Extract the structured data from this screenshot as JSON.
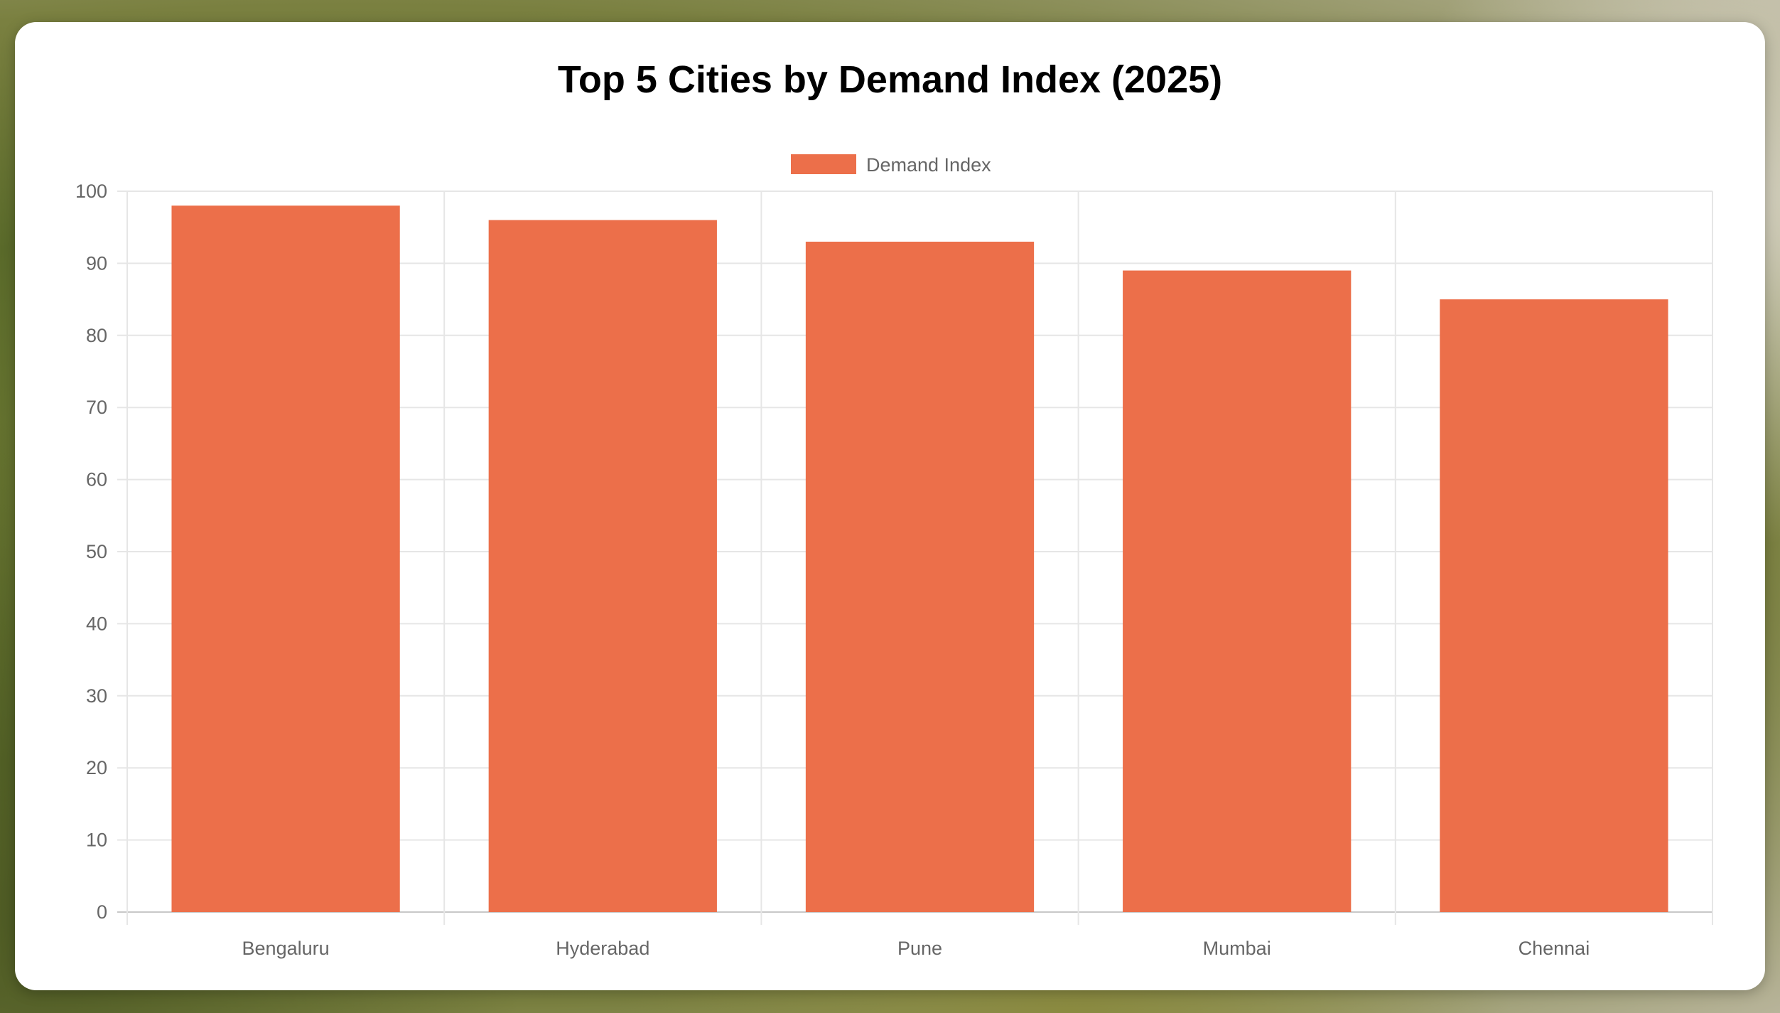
{
  "chart_data": {
    "type": "bar",
    "title": "Top 5 Cities by Demand Index (2025)",
    "categories": [
      "Bengaluru",
      "Hyderabad",
      "Pune",
      "Mumbai",
      "Chennai"
    ],
    "series": [
      {
        "name": "Demand Index",
        "values": [
          98,
          96,
          93,
          89,
          85
        ],
        "color": "#ec6f4a"
      }
    ],
    "xlabel": "",
    "ylabel": "",
    "ylim": [
      0,
      100
    ],
    "yticks": [
      "0",
      "10",
      "20",
      "30",
      "40",
      "50",
      "60",
      "70",
      "80",
      "90",
      "100"
    ],
    "grid": true,
    "legend_position": "top-center"
  }
}
